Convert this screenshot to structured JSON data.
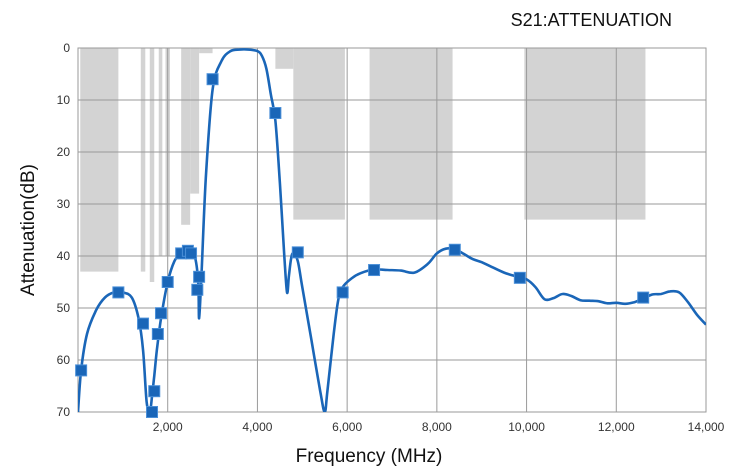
{
  "chart_data": {
    "type": "line",
    "title": "S21:ATTENUATION",
    "xlabel": "Frequency (MHz)",
    "ylabel": "Attenuation(dB)",
    "xlim": [
      0,
      14000
    ],
    "ylim": [
      0,
      70
    ],
    "y_inverted": true,
    "grid": true,
    "x_ticks": [
      2000,
      4000,
      6000,
      8000,
      10000,
      12000,
      14000
    ],
    "x_tick_labels": [
      "2,000",
      "4,000",
      "6,000",
      "8,000",
      "10,000",
      "12,000",
      "14,000"
    ],
    "y_ticks": [
      0,
      10,
      20,
      30,
      40,
      50,
      60,
      70
    ],
    "y_tick_labels": [
      "0",
      "10",
      "20",
      "30",
      "40",
      "50",
      "60",
      "70"
    ],
    "colors": {
      "series": "#1a66b8",
      "mask": "#d3d3d3",
      "grid": "#9a9a9a"
    },
    "mask_regions": [
      {
        "x0": 50,
        "x1": 900,
        "y": 43
      },
      {
        "x0": 1400,
        "x1": 1500,
        "y": 43
      },
      {
        "x0": 1600,
        "x1": 1700,
        "y": 45
      },
      {
        "x0": 1800,
        "x1": 1880,
        "y": 40
      },
      {
        "x0": 1950,
        "x1": 2050,
        "y": 40
      },
      {
        "x0": 2300,
        "x1": 2500,
        "y": 34
      },
      {
        "x0": 2500,
        "x1": 2700,
        "y": 28
      },
      {
        "x0": 2700,
        "x1": 3000,
        "y": 1
      },
      {
        "x0": 4400,
        "x1": 4800,
        "y": 4
      },
      {
        "x0": 4800,
        "x1": 5950,
        "y": 33
      },
      {
        "x0": 6500,
        "x1": 8350,
        "y": 33
      },
      {
        "x0": 9950,
        "x1": 12650,
        "y": 33
      }
    ],
    "series": [
      {
        "x": [
          0,
          70,
          200,
          400,
          600,
          800,
          1000,
          1200,
          1350,
          1450,
          1530,
          1600,
          1650,
          1700,
          1760,
          1850,
          2000,
          2150,
          2300,
          2450,
          2600,
          2680,
          2700,
          2750,
          2850,
          3000,
          3200,
          3400,
          3600,
          3800,
          4000,
          4100,
          4200,
          4300,
          4400,
          4500,
          4600,
          4660,
          4700,
          4750,
          4800,
          4900,
          5000,
          5200,
          5400,
          5500,
          5560,
          5700,
          5800,
          5900,
          6100,
          6300,
          6600,
          6900,
          7200,
          7500,
          7800,
          8000,
          8200,
          8400,
          8600,
          8800,
          9000,
          9200,
          9500,
          9800,
          10000,
          10200,
          10400,
          10600,
          10800,
          11000,
          11200,
          11400,
          11600,
          11800,
          12000,
          12200,
          12400,
          12600,
          12800,
          13000,
          13200,
          13400,
          13600,
          13800,
          14000
        ],
        "y": [
          70,
          62,
          55,
          50.5,
          48,
          47,
          47,
          48,
          52,
          58,
          68,
          70,
          67,
          63,
          58,
          52,
          45,
          41,
          39.5,
          39,
          40,
          45,
          52,
          44,
          25,
          8,
          2.5,
          0.6,
          0.3,
          0.3,
          0.6,
          1.5,
          4,
          9,
          14,
          26,
          40,
          47,
          44,
          40.5,
          39.5,
          41,
          46,
          56,
          66,
          70,
          66,
          55,
          48.5,
          46,
          44.3,
          43.3,
          42.6,
          42.7,
          42.8,
          43.2,
          41.5,
          39.5,
          38.6,
          38.7,
          39.6,
          40.6,
          41.2,
          42,
          43.2,
          44,
          44.5,
          46,
          48.3,
          48.1,
          47.3,
          47.7,
          48.5,
          48.6,
          48.7,
          49.1,
          49,
          49.2,
          48.9,
          48.2,
          47.4,
          47.3,
          46.8,
          47,
          48.9,
          51.3,
          53.2
        ]
      }
    ],
    "markers": {
      "x": [
        70,
        900,
        1450,
        1650,
        1700,
        1780,
        1850,
        2000,
        2300,
        2450,
        2520,
        2660,
        2700,
        3000,
        4400,
        4900,
        5900,
        6600,
        8400,
        9850,
        12600
      ],
      "y": [
        62,
        47,
        53,
        70,
        66,
        55,
        51,
        45,
        39.5,
        39,
        39.5,
        46.5,
        44,
        6,
        12.5,
        39.3,
        47,
        42.7,
        38.8,
        44.2,
        48
      ]
    }
  }
}
